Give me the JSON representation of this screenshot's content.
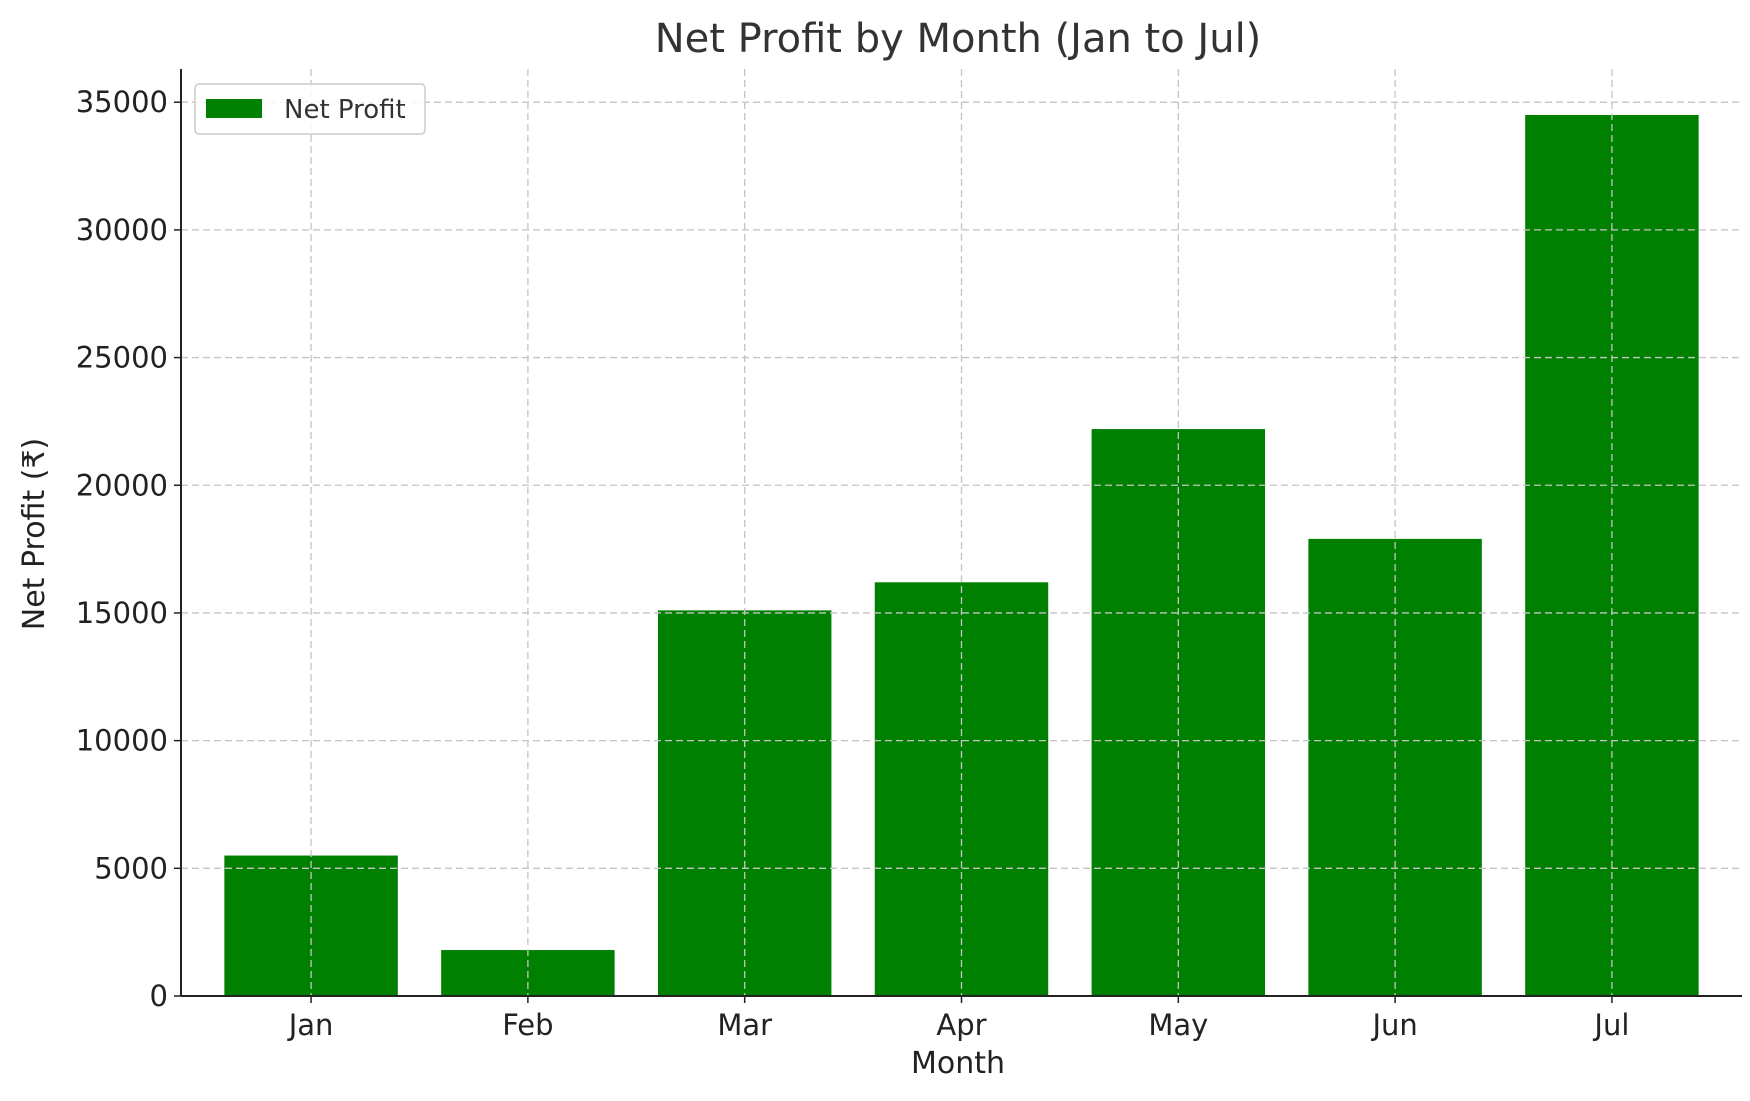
{
  "chart_data": {
    "type": "bar",
    "title": "Net Profit by Month (Jan to Jul)",
    "xlabel": "Month",
    "ylabel": "Net Profit (₹)",
    "categories": [
      "Jan",
      "Feb",
      "Mar",
      "Apr",
      "May",
      "Jun",
      "Jul"
    ],
    "series": [
      {
        "name": "Net Profit",
        "values": [
          5500,
          1800,
          15100,
          16200,
          22200,
          17900,
          34500
        ],
        "color": "#008000"
      }
    ],
    "ylim": [
      0,
      36300
    ],
    "yticks": [
      0,
      5000,
      10000,
      15000,
      20000,
      25000,
      30000,
      35000
    ],
    "grid": true,
    "legend_position": "top-left"
  }
}
